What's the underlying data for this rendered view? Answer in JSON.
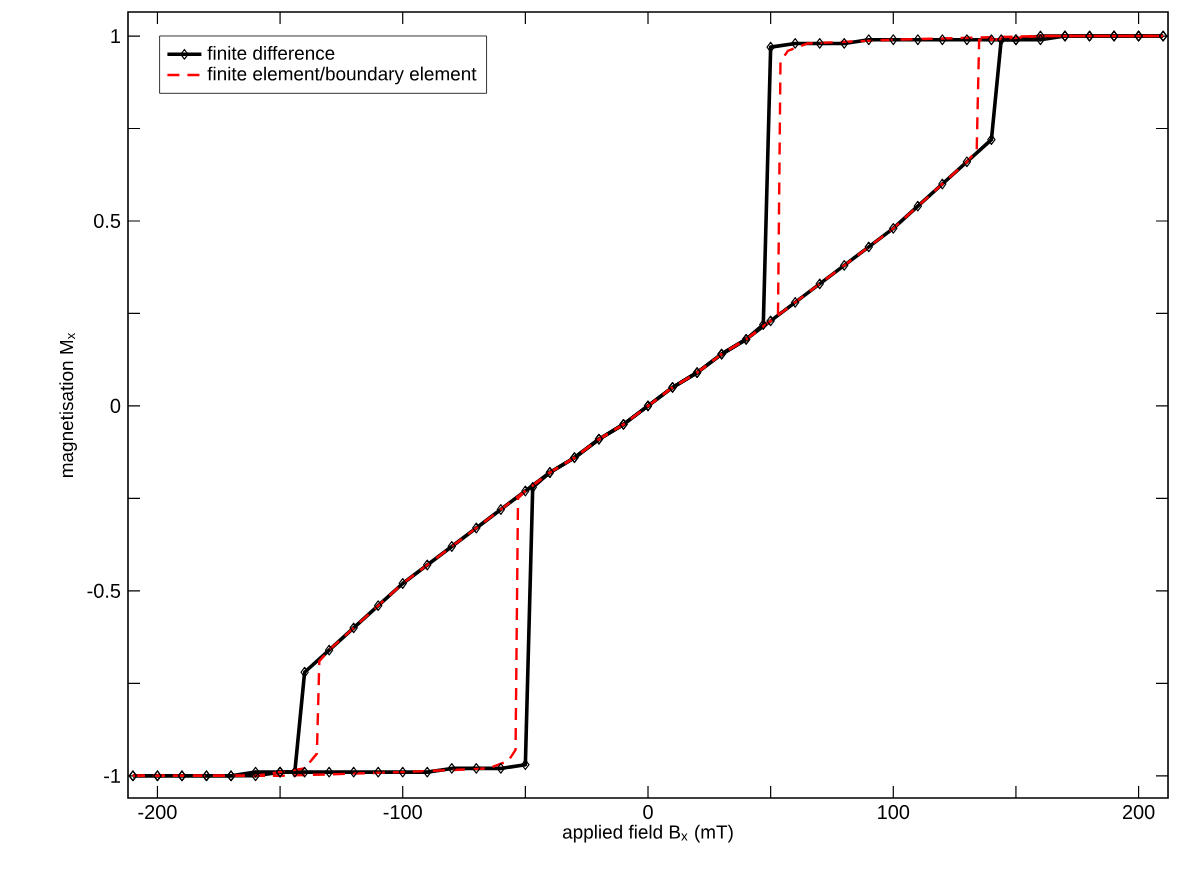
{
  "chart_data": {
    "type": "line",
    "xlabel": "applied field B$_{x}$ (mT)",
    "ylabel": "magnetisation M$_{x}$",
    "xlim": [
      -212,
      212
    ],
    "ylim": [
      -1.06,
      1.065
    ],
    "xticks": [
      -200,
      {
        "value": -150,
        "label": null
      },
      -100,
      {
        "value": -50,
        "label": null
      },
      0,
      {
        "value": 50,
        "label": null
      },
      100,
      {
        "value": 150,
        "label": null
      },
      200
    ],
    "yticks": [
      -1,
      {
        "value": -0.75,
        "label": null
      },
      -0.5,
      {
        "value": -0.25,
        "label": null
      },
      0,
      {
        "value": 0.25,
        "label": null
      },
      0.5,
      {
        "value": 0.75,
        "label": null
      },
      1
    ],
    "legend": "top left",
    "series": [
      {
        "name": "finite difference",
        "color": "#000000",
        "marker": "diamond",
        "line_style": "solid",
        "x": [
          -210,
          -200,
          -190,
          -180,
          -170,
          -160,
          -150,
          -140,
          -130,
          -120,
          -110,
          -100,
          -90,
          -80,
          -70,
          -60,
          -50,
          -47,
          -40,
          -30,
          -20,
          -10,
          0,
          10,
          20,
          30,
          40,
          50,
          60,
          70,
          80,
          90,
          100,
          110,
          120,
          130,
          140,
          144,
          150,
          160,
          170,
          180,
          190,
          200,
          210
        ],
        "values": [
          -1.0,
          -1.0,
          -1.0,
          -1.0,
          -1.0,
          -1.0,
          -0.99,
          -0.99,
          -0.99,
          -0.99,
          -0.99,
          -0.99,
          -0.99,
          -0.98,
          -0.98,
          -0.98,
          -0.97,
          -0.22,
          -0.18,
          -0.14,
          -0.09,
          -0.05,
          0.0,
          0.05,
          0.09,
          0.14,
          0.18,
          0.23,
          0.28,
          0.33,
          0.38,
          0.43,
          0.48,
          0.54,
          0.6,
          0.66,
          0.72,
          0.99,
          0.99,
          0.99,
          1.0,
          1.0,
          1.0,
          1.0,
          1.0
        ]
      },
      {
        "color": "#000000",
        "marker": "diamond",
        "line_style": "solid",
        "x": [
          -210,
          -200,
          -190,
          -180,
          -170,
          -160,
          -150,
          -144,
          -140,
          -130,
          -120,
          -110,
          -100,
          -90,
          -80,
          -70,
          -60,
          -50,
          -40,
          -30,
          -20,
          -10,
          0,
          10,
          20,
          30,
          40,
          47,
          50,
          60,
          70,
          80,
          90,
          100,
          110,
          120,
          130,
          140,
          150,
          160,
          170,
          180,
          190,
          200,
          210
        ],
        "values": [
          -1.0,
          -1.0,
          -1.0,
          -1.0,
          -1.0,
          -0.99,
          -0.99,
          -0.99,
          -0.72,
          -0.66,
          -0.6,
          -0.54,
          -0.48,
          -0.43,
          -0.38,
          -0.33,
          -0.28,
          -0.23,
          -0.18,
          -0.14,
          -0.09,
          -0.05,
          0.0,
          0.05,
          0.09,
          0.14,
          0.18,
          0.22,
          0.97,
          0.98,
          0.98,
          0.98,
          0.99,
          0.99,
          0.99,
          0.99,
          0.99,
          0.99,
          0.99,
          1.0,
          1.0,
          1.0,
          1.0,
          1.0,
          1.0
        ]
      },
      {
        "name": "finite element/boundary element",
        "color": "#ff0000",
        "marker": "none",
        "line_style": "dashed",
        "x": [
          -210,
          -150,
          -100,
          -65,
          -57,
          -54,
          -53,
          -50,
          -40,
          -30,
          -20,
          -10,
          0,
          10,
          20,
          30,
          40,
          50,
          60,
          70,
          80,
          90,
          100,
          110,
          120,
          130,
          134,
          135,
          140,
          160,
          210
        ],
        "values": [
          -1.0,
          -1.0,
          -0.99,
          -0.98,
          -0.96,
          -0.93,
          -0.25,
          -0.23,
          -0.18,
          -0.14,
          -0.09,
          -0.05,
          0.0,
          0.05,
          0.09,
          0.14,
          0.18,
          0.23,
          0.28,
          0.33,
          0.38,
          0.43,
          0.48,
          0.54,
          0.6,
          0.66,
          0.69,
          0.99,
          0.99,
          1.0,
          1.0
        ]
      },
      {
        "color": "#ff0000",
        "marker": "none",
        "line_style": "dashed",
        "x": [
          -210,
          -160,
          -140,
          -135,
          -134,
          -130,
          -120,
          -110,
          -100,
          -90,
          -80,
          -70,
          -60,
          -50,
          -40,
          -30,
          -20,
          -10,
          0,
          10,
          20,
          30,
          40,
          50,
          53,
          54,
          57,
          65,
          100,
          160,
          210
        ],
        "values": [
          -1.0,
          -1.0,
          -0.98,
          -0.94,
          -0.69,
          -0.66,
          -0.6,
          -0.54,
          -0.48,
          -0.43,
          -0.38,
          -0.33,
          -0.28,
          -0.23,
          -0.18,
          -0.14,
          -0.09,
          -0.05,
          0.0,
          0.05,
          0.09,
          0.14,
          0.18,
          0.23,
          0.25,
          0.93,
          0.96,
          0.98,
          0.99,
          1.0,
          1.0
        ]
      }
    ]
  }
}
